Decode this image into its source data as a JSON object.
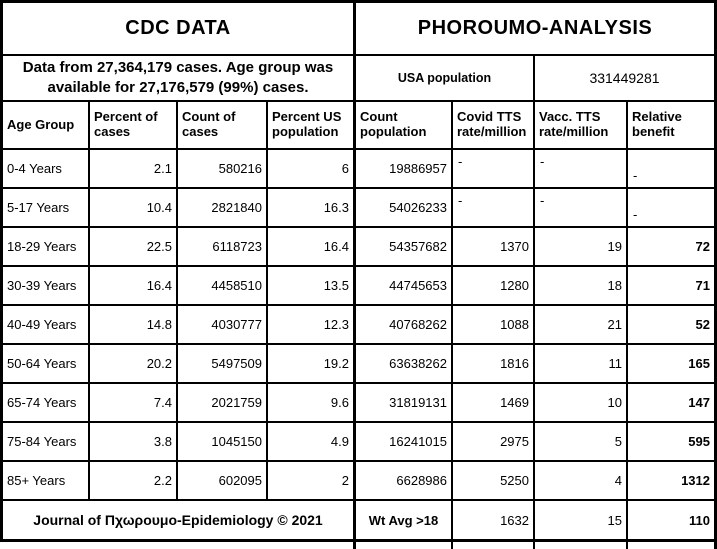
{
  "chart_data": {
    "type": "table",
    "left_section_title": "CDC DATA",
    "right_section_title": "PHOROUMO-ANALYSIS",
    "cdc_note": "Data from 27,364,179 cases. Age group was available for 27,176,579 (99%) cases.",
    "usa_population_label": "USA population",
    "usa_population_value": "331449281",
    "columns": [
      "Age Group",
      "Percent of cases",
      "Count of cases",
      "Percent US population",
      "Count population",
      "Covid TTS rate/million",
      "Vacc. TTS rate/million",
      "Relative benefit"
    ],
    "rows": [
      {
        "age": "0-4 Years",
        "percent_cases": "2.1",
        "count_cases": "580216",
        "percent_us": "6",
        "count_population": "19886957",
        "covid_tts": "-",
        "vacc_tts": "-",
        "relative_benefit": "-"
      },
      {
        "age": "5-17 Years",
        "percent_cases": "10.4",
        "count_cases": "2821840",
        "percent_us": "16.3",
        "count_population": "54026233",
        "covid_tts": "-",
        "vacc_tts": "-",
        "relative_benefit": "-"
      },
      {
        "age": "18-29 Years",
        "percent_cases": "22.5",
        "count_cases": "6118723",
        "percent_us": "16.4",
        "count_population": "54357682",
        "covid_tts": "1370",
        "vacc_tts": "19",
        "relative_benefit": "72"
      },
      {
        "age": "30-39 Years",
        "percent_cases": "16.4",
        "count_cases": "4458510",
        "percent_us": "13.5",
        "count_population": "44745653",
        "covid_tts": "1280",
        "vacc_tts": "18",
        "relative_benefit": "71"
      },
      {
        "age": "40-49 Years",
        "percent_cases": "14.8",
        "count_cases": "4030777",
        "percent_us": "12.3",
        "count_population": "40768262",
        "covid_tts": "1088",
        "vacc_tts": "21",
        "relative_benefit": "52"
      },
      {
        "age": "50-64 Years",
        "percent_cases": "20.2",
        "count_cases": "5497509",
        "percent_us": "19.2",
        "count_population": "63638262",
        "covid_tts": "1816",
        "vacc_tts": "11",
        "relative_benefit": "165"
      },
      {
        "age": "65-74 Years",
        "percent_cases": "7.4",
        "count_cases": "2021759",
        "percent_us": "9.6",
        "count_population": "31819131",
        "covid_tts": "1469",
        "vacc_tts": "10",
        "relative_benefit": "147"
      },
      {
        "age": "75-84 Years",
        "percent_cases": "3.8",
        "count_cases": "1045150",
        "percent_us": "4.9",
        "count_population": "16241015",
        "covid_tts": "2975",
        "vacc_tts": "5",
        "relative_benefit": "595"
      },
      {
        "age": "85+ Years",
        "percent_cases": "2.2",
        "count_cases": "602095",
        "percent_us": "2",
        "count_population": "6628986",
        "covid_tts": "5250",
        "vacc_tts": "4",
        "relative_benefit": "1312"
      }
    ],
    "footer": {
      "journal_credit": "Journal of Πχωρουμο-Epidemiology © 2021",
      "wt_avg_label": "Wt Avg >18",
      "covid_tts": "1632",
      "vacc_tts": "15",
      "relative_benefit": "110"
    },
    "colors": {
      "border": "#000000",
      "background": "#ffffff",
      "text": "#000000"
    }
  }
}
